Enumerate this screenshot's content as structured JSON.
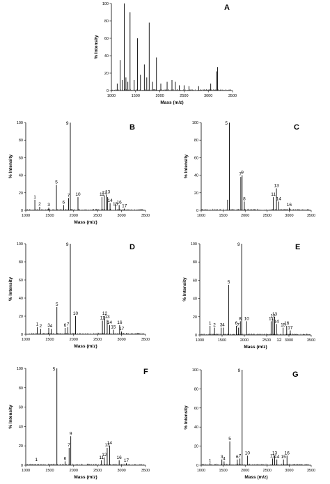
{
  "chart_data": [
    {
      "panel": "A",
      "type": "bar",
      "xlabel": "Mass (m/z)",
      "ylabel": "% Intensity",
      "xlim": [
        1000,
        3500
      ],
      "ylim": [
        0,
        100
      ],
      "xticks": [
        1000,
        1500,
        2000,
        2500,
        3000,
        3500
      ],
      "yticks": [
        0,
        20,
        40,
        60,
        80,
        100
      ],
      "peaks": [
        {
          "x": 1120,
          "y": 8
        },
        {
          "x": 1180,
          "y": 35
        },
        {
          "x": 1230,
          "y": 12
        },
        {
          "x": 1265,
          "y": 100
        },
        {
          "x": 1300,
          "y": 15
        },
        {
          "x": 1340,
          "y": 10
        },
        {
          "x": 1385,
          "y": 90
        },
        {
          "x": 1470,
          "y": 12
        },
        {
          "x": 1540,
          "y": 60
        },
        {
          "x": 1600,
          "y": 18
        },
        {
          "x": 1680,
          "y": 30
        },
        {
          "x": 1730,
          "y": 15
        },
        {
          "x": 1780,
          "y": 78
        },
        {
          "x": 1850,
          "y": 10
        },
        {
          "x": 1930,
          "y": 38
        },
        {
          "x": 2020,
          "y": 8
        },
        {
          "x": 2150,
          "y": 10
        },
        {
          "x": 2250,
          "y": 12
        },
        {
          "x": 2320,
          "y": 10
        },
        {
          "x": 2400,
          "y": 6
        },
        {
          "x": 2500,
          "y": 6
        },
        {
          "x": 2600,
          "y": 5
        },
        {
          "x": 2800,
          "y": 5
        },
        {
          "x": 3050,
          "y": 8
        },
        {
          "x": 3170,
          "y": 22
        },
        {
          "x": 3190,
          "y": 27
        }
      ],
      "labels": []
    },
    {
      "panel": "B",
      "type": "bar",
      "xlabel": "Mass (m/z)",
      "ylabel": "% Intensity",
      "xlim": [
        1000,
        3500
      ],
      "ylim": [
        0,
        100
      ],
      "xticks": [
        1000,
        1500,
        2000,
        2500,
        3000,
        3500
      ],
      "yticks": [
        0,
        20,
        40,
        60,
        80,
        100
      ],
      "peaks": [
        {
          "x": 1190,
          "y": 12
        },
        {
          "x": 1290,
          "y": 4
        },
        {
          "x": 1480,
          "y": 3
        },
        {
          "x": 1640,
          "y": 29
        },
        {
          "x": 1790,
          "y": 6
        },
        {
          "x": 1895,
          "y": 14
        },
        {
          "x": 1930,
          "y": 100
        },
        {
          "x": 2090,
          "y": 15
        },
        {
          "x": 2590,
          "y": 15
        },
        {
          "x": 2640,
          "y": 17
        },
        {
          "x": 2680,
          "y": 18
        },
        {
          "x": 2710,
          "y": 15
        },
        {
          "x": 2760,
          "y": 8
        },
        {
          "x": 2870,
          "y": 7
        },
        {
          "x": 2950,
          "y": 6
        },
        {
          "x": 3060,
          "y": 2
        }
      ],
      "labels": [
        {
          "text": "1",
          "x": 1190,
          "y": 12
        },
        {
          "text": "2",
          "x": 1290,
          "y": 4
        },
        {
          "text": "3",
          "x": 1480,
          "y": 3
        },
        {
          "text": "5",
          "x": 1640,
          "y": 29
        },
        {
          "text": "6",
          "x": 1790,
          "y": 6
        },
        {
          "text": "7",
          "x": 1895,
          "y": 14
        },
        {
          "text": "9",
          "x": 1930,
          "y": 100
        },
        {
          "text": "10",
          "x": 2090,
          "y": 15
        },
        {
          "text": "11",
          "x": 2590,
          "y": 15
        },
        {
          "text": "12",
          "x": 2640,
          "y": 17
        },
        {
          "text": "13",
          "x": 2710,
          "y": 18
        },
        {
          "text": "14",
          "x": 2760,
          "y": 8
        },
        {
          "text": "15",
          "x": 2870,
          "y": 4
        },
        {
          "text": "16",
          "x": 2950,
          "y": 6
        },
        {
          "text": "17",
          "x": 3060,
          "y": 2
        }
      ]
    },
    {
      "panel": "C",
      "type": "bar",
      "xlabel": "",
      "ylabel": "% Intensity",
      "xlim": [
        1000,
        3500
      ],
      "ylim": [
        0,
        100
      ],
      "xticks": [
        1000,
        1500,
        2000,
        2500,
        3000,
        3500
      ],
      "yticks": [
        0,
        20,
        40,
        60,
        80,
        100
      ],
      "peaks": [
        {
          "x": 1600,
          "y": 12
        },
        {
          "x": 1640,
          "y": 100
        },
        {
          "x": 1900,
          "y": 38
        },
        {
          "x": 1930,
          "y": 40
        },
        {
          "x": 1980,
          "y": 10
        },
        {
          "x": 2640,
          "y": 15
        },
        {
          "x": 2710,
          "y": 25
        },
        {
          "x": 2760,
          "y": 10
        },
        {
          "x": 3000,
          "y": 3
        }
      ],
      "labels": [
        {
          "text": "5",
          "x": 1640,
          "y": 100
        },
        {
          "text": "7",
          "x": 1890,
          "y": 38
        },
        {
          "text": "9",
          "x": 1935,
          "y": 40
        },
        {
          "text": "8",
          "x": 1980,
          "y": 10
        },
        {
          "text": "11",
          "x": 2640,
          "y": 15
        },
        {
          "text": "13",
          "x": 2710,
          "y": 25
        },
        {
          "text": "14",
          "x": 2760,
          "y": 10
        },
        {
          "text": "16",
          "x": 3000,
          "y": 3
        }
      ]
    },
    {
      "panel": "D",
      "type": "bar",
      "xlabel": "Mass (m/z)",
      "ylabel": "% Intensity",
      "xlim": [
        1000,
        3500
      ],
      "ylim": [
        0,
        100
      ],
      "xticks": [
        1000,
        1500,
        2000,
        2500,
        3000,
        3500
      ],
      "yticks": [
        0,
        20,
        40,
        60,
        80,
        100
      ],
      "peaks": [
        {
          "x": 1240,
          "y": 8
        },
        {
          "x": 1310,
          "y": 6
        },
        {
          "x": 1480,
          "y": 7
        },
        {
          "x": 1530,
          "y": 6
        },
        {
          "x": 1650,
          "y": 30
        },
        {
          "x": 1820,
          "y": 7
        },
        {
          "x": 1880,
          "y": 8
        },
        {
          "x": 1930,
          "y": 100
        },
        {
          "x": 2040,
          "y": 20
        },
        {
          "x": 2600,
          "y": 15
        },
        {
          "x": 2650,
          "y": 20
        },
        {
          "x": 2700,
          "y": 16
        },
        {
          "x": 2750,
          "y": 10
        },
        {
          "x": 2830,
          "y": 5
        },
        {
          "x": 2960,
          "y": 10
        },
        {
          "x": 3000,
          "y": 3
        }
      ],
      "labels": [
        {
          "text": "1",
          "x": 1240,
          "y": 8
        },
        {
          "text": "2",
          "x": 1310,
          "y": 6
        },
        {
          "text": "3",
          "x": 1480,
          "y": 7
        },
        {
          "text": "4",
          "x": 1530,
          "y": 6
        },
        {
          "text": "5",
          "x": 1650,
          "y": 30
        },
        {
          "text": "6",
          "x": 1820,
          "y": 7
        },
        {
          "text": "7",
          "x": 1880,
          "y": 8
        },
        {
          "text": "9",
          "x": 1930,
          "y": 100
        },
        {
          "text": "10",
          "x": 2040,
          "y": 20
        },
        {
          "text": "11",
          "x": 2600,
          "y": 15
        },
        {
          "text": "12",
          "x": 2650,
          "y": 20
        },
        {
          "text": "13",
          "x": 2700,
          "y": 16
        },
        {
          "text": "14",
          "x": 2750,
          "y": 10
        },
        {
          "text": "15",
          "x": 2830,
          "y": 5
        },
        {
          "text": "16",
          "x": 2960,
          "y": 10
        },
        {
          "text": "17",
          "x": 3000,
          "y": 3
        }
      ]
    },
    {
      "panel": "E",
      "type": "bar",
      "xlabel": "Mass (m/z)",
      "ylabel": "% Intensity",
      "xlim": [
        1000,
        3500
      ],
      "ylim": [
        0,
        100
      ],
      "xticks": [
        1000,
        1500,
        2000,
        2500,
        3000,
        3500
      ],
      "yticks": [
        0,
        20,
        40,
        60,
        80,
        100
      ],
      "peaks": [
        {
          "x": 1230,
          "y": 10
        },
        {
          "x": 1330,
          "y": 8
        },
        {
          "x": 1480,
          "y": 8
        },
        {
          "x": 1530,
          "y": 8
        },
        {
          "x": 1650,
          "y": 55
        },
        {
          "x": 1820,
          "y": 10
        },
        {
          "x": 1870,
          "y": 8
        },
        {
          "x": 1910,
          "y": 15
        },
        {
          "x": 1940,
          "y": 100
        },
        {
          "x": 2050,
          "y": 15
        },
        {
          "x": 2600,
          "y": 15
        },
        {
          "x": 2640,
          "y": 18
        },
        {
          "x": 2680,
          "y": 20
        },
        {
          "x": 2720,
          "y": 12
        },
        {
          "x": 2870,
          "y": 8
        },
        {
          "x": 2950,
          "y": 10
        },
        {
          "x": 3030,
          "y": 5
        }
      ],
      "labels": [
        {
          "text": "1",
          "x": 1230,
          "y": 10
        },
        {
          "text": "2",
          "x": 1330,
          "y": 8
        },
        {
          "text": "3",
          "x": 1480,
          "y": 8
        },
        {
          "text": "4",
          "x": 1530,
          "y": 8
        },
        {
          "text": "5",
          "x": 1650,
          "y": 55
        },
        {
          "text": "6",
          "x": 1820,
          "y": 10
        },
        {
          "text": "7",
          "x": 1860,
          "y": 8
        },
        {
          "text": "8",
          "x": 1905,
          "y": 15
        },
        {
          "text": "9",
          "x": 1940,
          "y": 100
        },
        {
          "text": "10",
          "x": 2050,
          "y": 15
        },
        {
          "text": "11",
          "x": 2600,
          "y": 15
        },
        {
          "text": "12",
          "x": 2640,
          "y": 18
        },
        {
          "text": "13",
          "x": 2680,
          "y": 20
        },
        {
          "text": "14",
          "x": 2720,
          "y": 12
        },
        {
          "text": "15",
          "x": 2870,
          "y": 8
        },
        {
          "text": "16",
          "x": 2950,
          "y": 10
        },
        {
          "text": "17",
          "x": 3030,
          "y": 5
        }
      ],
      "annotations": [
        {
          "text": "12",
          "x": 2780,
          "y": -4
        }
      ]
    },
    {
      "panel": "F",
      "type": "bar",
      "xlabel": "Mass (m/z)",
      "ylabel": "% Intensity",
      "xlim": [
        1000,
        3500
      ],
      "ylim": [
        0,
        100
      ],
      "xticks": [
        1000,
        1500,
        2000,
        2500,
        3000,
        3500
      ],
      "yticks": [
        0,
        20,
        40,
        60,
        80,
        100
      ],
      "peaks": [
        {
          "x": 1650,
          "y": 100
        },
        {
          "x": 1820,
          "y": 4
        },
        {
          "x": 1905,
          "y": 18
        },
        {
          "x": 1940,
          "y": 30
        },
        {
          "x": 2580,
          "y": 5
        },
        {
          "x": 2640,
          "y": 8
        },
        {
          "x": 2700,
          "y": 18
        },
        {
          "x": 2750,
          "y": 20
        },
        {
          "x": 2950,
          "y": 5
        },
        {
          "x": 3100,
          "y": 2
        }
      ],
      "labels": [
        {
          "text": "1",
          "x": 1220,
          "y": 3
        },
        {
          "text": "5",
          "x": 1650,
          "y": 100
        },
        {
          "text": "6",
          "x": 1820,
          "y": 4
        },
        {
          "text": "7",
          "x": 1900,
          "y": 18
        },
        {
          "text": "9",
          "x": 1940,
          "y": 30
        },
        {
          "text": "11",
          "x": 2580,
          "y": 5
        },
        {
          "text": "12",
          "x": 2640,
          "y": 8
        },
        {
          "text": "13",
          "x": 2700,
          "y": 18
        },
        {
          "text": "14",
          "x": 2750,
          "y": 20
        },
        {
          "text": "16",
          "x": 2950,
          "y": 5
        },
        {
          "text": "17",
          "x": 3100,
          "y": 2
        }
      ]
    },
    {
      "panel": "G",
      "type": "bar",
      "xlabel": "Mass (m/z)",
      "ylabel": "% Intensity",
      "xlim": [
        1000,
        3500
      ],
      "ylim": [
        0,
        100
      ],
      "xticks": [
        1000,
        1500,
        2000,
        2500,
        3000,
        3500
      ],
      "yticks": [
        0,
        20,
        40,
        60,
        80,
        100
      ],
      "peaks": [
        {
          "x": 1200,
          "y": 2
        },
        {
          "x": 1470,
          "y": 6
        },
        {
          "x": 1520,
          "y": 4
        },
        {
          "x": 1650,
          "y": 25
        },
        {
          "x": 1820,
          "y": 6
        },
        {
          "x": 1880,
          "y": 7
        },
        {
          "x": 1930,
          "y": 100
        },
        {
          "x": 2050,
          "y": 10
        },
        {
          "x": 2620,
          "y": 7
        },
        {
          "x": 2670,
          "y": 10
        },
        {
          "x": 2720,
          "y": 6
        },
        {
          "x": 2870,
          "y": 6
        },
        {
          "x": 2950,
          "y": 10
        }
      ],
      "labels": [
        {
          "text": "1",
          "x": 1200,
          "y": 2
        },
        {
          "text": "3",
          "x": 1470,
          "y": 6
        },
        {
          "text": "4",
          "x": 1520,
          "y": 4
        },
        {
          "text": "5",
          "x": 1650,
          "y": 25
        },
        {
          "text": "6",
          "x": 1820,
          "y": 6
        },
        {
          "text": "7",
          "x": 1880,
          "y": 7
        },
        {
          "text": "9",
          "x": 1930,
          "y": 100
        },
        {
          "text": "10",
          "x": 2050,
          "y": 10
        },
        {
          "text": "11",
          "x": 2620,
          "y": 7
        },
        {
          "text": "13",
          "x": 2670,
          "y": 10
        },
        {
          "text": "14",
          "x": 2720,
          "y": 6
        },
        {
          "text": "15",
          "x": 2870,
          "y": 6
        },
        {
          "text": "16",
          "x": 2950,
          "y": 10
        }
      ]
    }
  ]
}
